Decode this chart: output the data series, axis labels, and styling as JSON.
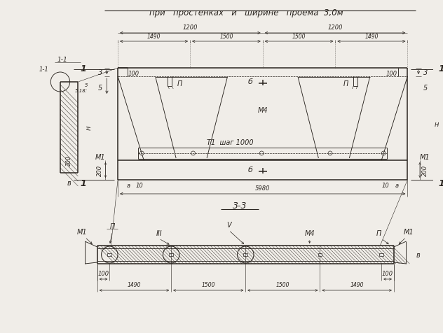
{
  "title": "при   простенках   и   ширине   проема  3,0м",
  "bg_color": "#f0ede8",
  "line_color": "#2a2520",
  "text_color": "#2a2520",
  "title_fontsize": 8.5,
  "label_fontsize": 7.0,
  "small_fontsize": 6.0,
  "seg": [
    1490,
    1500,
    1500,
    1490
  ],
  "seg_sum": 5980,
  "top_dim_labels": [
    "1200",
    "1200"
  ],
  "seg_labels": [
    "1490",
    "1500",
    "1500",
    "1490"
  ],
  "total_label": "5980"
}
